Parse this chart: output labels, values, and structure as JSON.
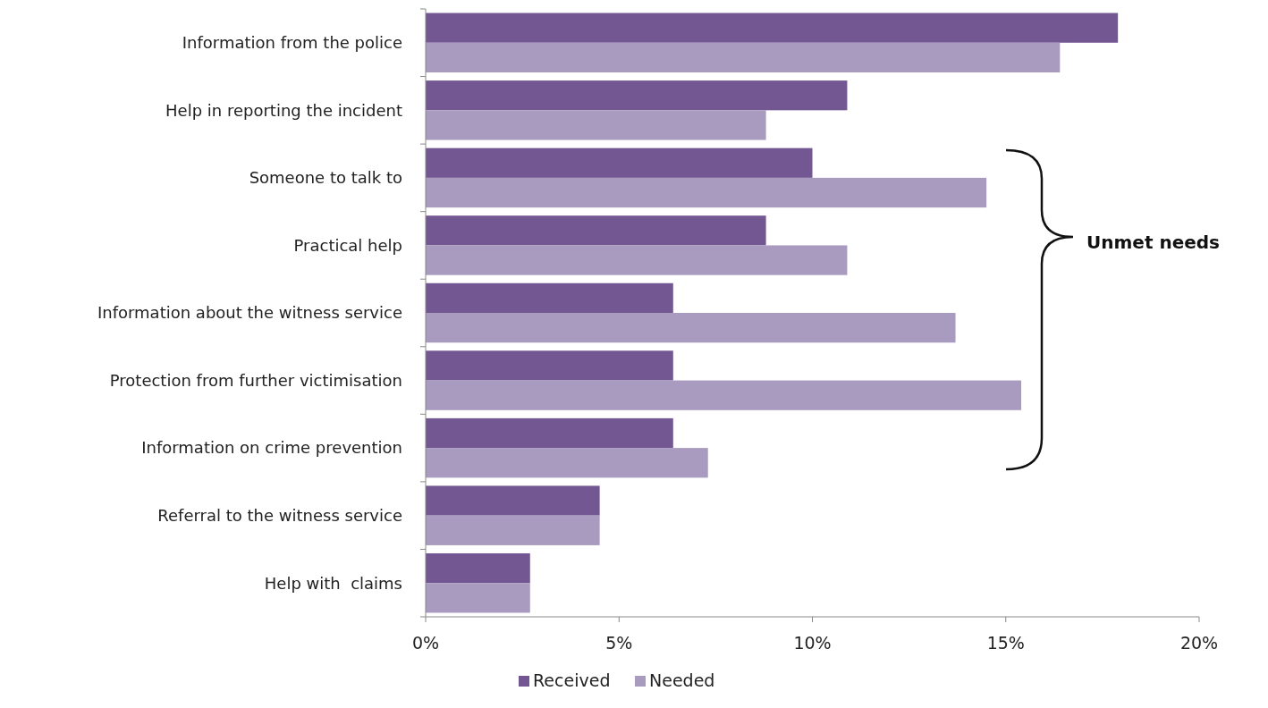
{
  "chart_data": {
    "type": "bar",
    "orientation": "horizontal",
    "categories": [
      "Information from the police",
      "Help in reporting the incident",
      "Someone to talk to",
      "Practical help",
      "Information about the witness service",
      "Protection from further victimisation",
      "Information on crime prevention",
      "Referral to the witness service",
      "Help with  claims"
    ],
    "series": [
      {
        "name": "Received",
        "color": "#735792",
        "values": [
          17.9,
          10.9,
          10.0,
          8.8,
          6.4,
          6.4,
          6.4,
          4.5,
          2.7
        ]
      },
      {
        "name": "Needed",
        "color": "#a89bbf",
        "values": [
          16.4,
          8.8,
          14.5,
          10.9,
          13.7,
          15.4,
          7.3,
          4.5,
          2.7
        ]
      }
    ],
    "xlim": [
      0,
      20
    ],
    "xticks": [
      {
        "value": 0,
        "label": "0%"
      },
      {
        "value": 5,
        "label": "5%"
      },
      {
        "value": 10,
        "label": "10%"
      },
      {
        "value": 15,
        "label": "15%"
      },
      {
        "value": 20,
        "label": "20%"
      }
    ],
    "annotations": [
      "Unmet needs"
    ],
    "legend": "bottom",
    "grid": false
  }
}
